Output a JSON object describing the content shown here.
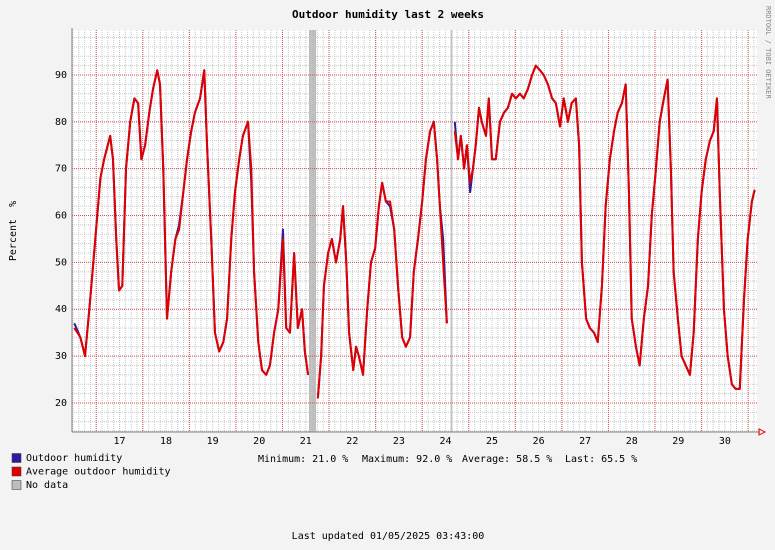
{
  "chart_data": {
    "type": "line",
    "title": "Outdoor humidity last 2 weeks",
    "y_label": "Percent  %",
    "watermark": "RRDTOOL / TOBI OETIKER",
    "footer": "Last updated 01/05/2025 03:43:00",
    "stats": [
      "Minimum: 21.0 %",
      "Maximum: 92.0 %",
      "Average: 58.5 %",
      "Last: 65.5 %"
    ],
    "xlim": [
      16.48,
      31.19
    ],
    "ylim": [
      13.8,
      99.6
    ],
    "yticks": [
      20,
      30,
      40,
      50,
      60,
      70,
      80,
      90
    ],
    "xgrid": [
      17,
      18,
      19,
      20,
      21,
      22,
      23,
      24,
      25,
      26,
      27,
      28,
      29,
      30,
      31
    ],
    "xticks": [
      {
        "value": 17.5,
        "label": "17"
      },
      {
        "value": 18.5,
        "label": "18"
      },
      {
        "value": 19.5,
        "label": "19"
      },
      {
        "value": 20.5,
        "label": "20"
      },
      {
        "value": 21.5,
        "label": "21"
      },
      {
        "value": 22.5,
        "label": "22"
      },
      {
        "value": 23.5,
        "label": "23"
      },
      {
        "value": 24.5,
        "label": "24"
      },
      {
        "value": 25.5,
        "label": "25"
      },
      {
        "value": 26.5,
        "label": "26"
      },
      {
        "value": 27.5,
        "label": "27"
      },
      {
        "value": 28.5,
        "label": "28"
      },
      {
        "value": 29.5,
        "label": "29"
      },
      {
        "value": 30.5,
        "label": "30"
      }
    ],
    "grid": true,
    "x": [
      16.53,
      16.66,
      16.76,
      16.87,
      16.98,
      17.09,
      17.17,
      17.3,
      17.36,
      17.43,
      17.49,
      17.56,
      17.64,
      17.73,
      17.82,
      17.9,
      17.97,
      18.05,
      18.14,
      18.22,
      18.31,
      18.37,
      18.44,
      18.52,
      18.61,
      18.7,
      18.78,
      18.87,
      18.95,
      19.04,
      19.12,
      19.23,
      19.32,
      19.38,
      19.47,
      19.55,
      19.64,
      19.73,
      19.81,
      19.9,
      19.98,
      20.07,
      20.15,
      20.26,
      20.33,
      20.39,
      20.48,
      20.56,
      20.65,
      20.73,
      20.82,
      20.91,
      21.01,
      21.08,
      21.16,
      21.25,
      21.33,
      21.42,
      21.48,
      21.55,
      21.64,
      21.76,
      21.83,
      21.89,
      21.98,
      22.06,
      22.15,
      22.24,
      22.3,
      22.37,
      22.43,
      22.52,
      22.58,
      22.64,
      22.73,
      22.82,
      22.9,
      22.99,
      23.07,
      23.14,
      23.22,
      23.31,
      23.4,
      23.48,
      23.57,
      23.65,
      23.74,
      23.82,
      23.91,
      24.0,
      24.08,
      24.17,
      24.25,
      24.32,
      24.38,
      24.45,
      24.53,
      24.64,
      24.7,
      24.77,
      24.83,
      24.9,
      24.96,
      25.03,
      25.09,
      25.15,
      25.22,
      25.28,
      25.37,
      25.43,
      25.5,
      25.58,
      25.67,
      25.76,
      25.84,
      25.93,
      26.01,
      26.1,
      26.18,
      26.27,
      26.36,
      26.44,
      26.53,
      26.61,
      26.7,
      26.79,
      26.87,
      26.96,
      27.04,
      27.13,
      27.21,
      27.3,
      27.37,
      27.43,
      27.52,
      27.6,
      27.69,
      27.77,
      27.86,
      27.94,
      28.03,
      28.12,
      28.2,
      28.29,
      28.37,
      28.44,
      28.5,
      28.59,
      28.67,
      28.76,
      28.85,
      28.93,
      29.02,
      29.1,
      29.19,
      29.27,
      29.34,
      29.4,
      29.49,
      29.57,
      29.66,
      29.75,
      29.83,
      29.92,
      30.0,
      30.09,
      30.18,
      30.26,
      30.33,
      30.39,
      30.48,
      30.56,
      30.65,
      30.73,
      30.82,
      30.91,
      30.99,
      31.08,
      31.14
    ],
    "series": [
      {
        "name": "Outdoor humidity",
        "color": "#2c1c9c",
        "values": [
          37,
          34,
          30,
          42,
          55,
          68,
          72,
          77,
          72,
          55,
          44,
          45,
          70,
          80,
          85,
          84,
          72,
          75,
          82,
          87,
          91,
          88,
          70,
          38,
          48,
          55,
          58,
          65,
          72,
          78,
          82,
          85,
          91,
          75,
          55,
          35,
          31,
          33,
          38,
          55,
          65,
          72,
          77,
          80,
          67,
          48,
          33,
          27,
          26,
          28,
          35,
          40,
          57,
          36,
          35,
          52,
          36,
          40,
          31,
          26,
          null,
          21,
          30,
          45,
          52,
          55,
          50,
          55,
          62,
          50,
          35,
          27,
          32,
          30,
          26,
          40,
          50,
          53,
          62,
          67,
          63,
          62,
          57,
          45,
          34,
          32,
          34,
          48,
          55,
          63,
          72,
          78,
          80,
          72,
          62,
          55,
          37,
          null,
          80,
          72,
          77,
          70,
          75,
          65,
          70,
          75,
          83,
          80,
          77,
          85,
          72,
          72,
          80,
          82,
          83,
          86,
          85,
          86,
          85,
          87,
          90,
          92,
          91,
          90,
          88,
          85,
          84,
          79,
          85,
          80,
          84,
          85,
          75,
          50,
          38,
          36,
          35,
          33,
          45,
          62,
          72,
          78,
          82,
          84,
          88,
          65,
          38,
          32,
          28,
          38,
          45,
          60,
          70,
          80,
          85,
          89,
          70,
          48,
          38,
          30,
          28,
          26,
          35,
          55,
          65,
          72,
          76,
          78,
          85,
          65,
          40,
          30,
          24,
          23,
          23,
          42,
          55,
          63,
          65.5
        ]
      },
      {
        "name": "Average outdoor humidity",
        "color": "#e00000",
        "values": [
          36,
          34,
          30,
          42,
          55,
          68,
          72,
          77,
          72,
          55,
          44,
          45,
          70,
          80,
          85,
          84,
          72,
          75,
          82,
          87,
          91,
          88,
          70,
          38,
          48,
          55,
          57,
          65,
          72,
          78,
          82,
          85,
          91,
          75,
          55,
          35,
          31,
          33,
          38,
          55,
          65,
          72,
          77,
          80,
          70,
          48,
          33,
          27,
          26,
          28,
          35,
          40,
          55,
          36,
          35,
          52,
          36,
          40,
          31,
          26,
          null,
          21,
          30,
          45,
          52,
          55,
          50,
          55,
          62,
          50,
          35,
          27,
          32,
          30,
          26,
          40,
          50,
          53,
          62,
          67,
          63,
          63,
          57,
          45,
          34,
          32,
          34,
          48,
          55,
          63,
          72,
          78,
          80,
          72,
          62,
          50,
          37,
          null,
          78,
          72,
          77,
          70,
          75,
          67,
          70,
          75,
          83,
          80,
          77,
          85,
          72,
          72,
          80,
          82,
          83,
          86,
          85,
          86,
          85,
          87,
          90,
          92,
          91,
          90,
          88,
          85,
          84,
          79,
          85,
          80,
          84,
          85,
          75,
          50,
          38,
          36,
          35,
          33,
          45,
          62,
          72,
          78,
          82,
          84,
          88,
          65,
          38,
          32,
          28,
          38,
          45,
          60,
          70,
          80,
          85,
          89,
          70,
          48,
          38,
          30,
          28,
          26,
          35,
          55,
          65,
          72,
          76,
          78,
          85,
          65,
          40,
          30,
          24,
          23,
          23,
          42,
          55,
          63,
          65.5
        ]
      }
    ],
    "no_data": {
      "name": "No data",
      "color": "#bdbdbd",
      "ranges": [
        [
          21.57,
          21.72
        ],
        [
          24.61,
          24.65
        ]
      ]
    }
  }
}
